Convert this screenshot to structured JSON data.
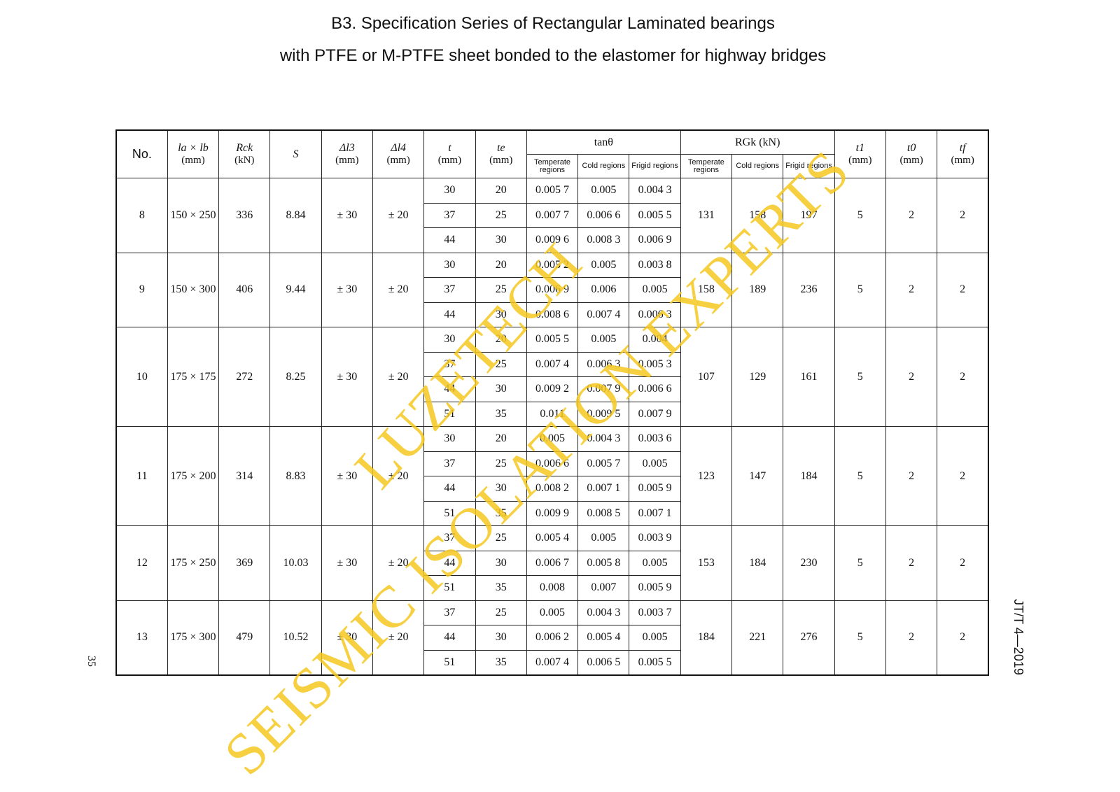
{
  "title_line1": "B3.  Specification Series of Rectangular Laminated bearings",
  "title_line2": "with PTFE or M-PTFE sheet bonded to the elastomer for highway bridges",
  "header": {
    "no": "No.",
    "dims": "la × lb",
    "dims_unit": "(mm)",
    "rck": "Rck",
    "rck_unit": "(kN)",
    "s": "S",
    "dl3": "Δl3",
    "dl3_unit": "(mm)",
    "dl4": "Δl4",
    "dl4_unit": "(mm)",
    "t": "t",
    "t_unit": "(mm)",
    "te": "te",
    "te_unit": "(mm)",
    "tan": "tanθ",
    "rgk": "RGk (kN)",
    "temperate": "Temperate regions",
    "cold": "Cold regions",
    "frigid": "Frigid regions",
    "t1": "t1",
    "t1_unit": "(mm)",
    "t0": "t0",
    "t0_unit": "(mm)",
    "tf": "tf",
    "tf_unit": "(mm)"
  },
  "groups": [
    {
      "no": "8",
      "dims": "150 × 250",
      "rck": "336",
      "s": "8.84",
      "dl3": "± 30",
      "dl4": "± 20",
      "rgk": [
        "131",
        "158",
        "197"
      ],
      "t1": "5",
      "t0": "2",
      "tf": "2",
      "rows": [
        [
          "30",
          "20",
          "0.005 7",
          "0.005",
          "0.004 3"
        ],
        [
          "37",
          "25",
          "0.007 7",
          "0.006 6",
          "0.005 5"
        ],
        [
          "44",
          "30",
          "0.009 6",
          "0.008 3",
          "0.006 9"
        ]
      ]
    },
    {
      "no": "9",
      "dims": "150 × 300",
      "rck": "406",
      "s": "9.44",
      "dl3": "± 30",
      "dl4": "± 20",
      "rgk": [
        "158",
        "189",
        "236"
      ],
      "t1": "5",
      "t0": "2",
      "tf": "2",
      "rows": [
        [
          "30",
          "20",
          "0.005 2",
          "0.005",
          "0.003 8"
        ],
        [
          "37",
          "25",
          "0.006 9",
          "0.006",
          "0.005"
        ],
        [
          "44",
          "30",
          "0.008 6",
          "0.007 4",
          "0.006 3"
        ]
      ]
    },
    {
      "no": "10",
      "dims": "175 × 175",
      "rck": "272",
      "s": "8.25",
      "dl3": "± 30",
      "dl4": "± 20",
      "rgk": [
        "107",
        "129",
        "161"
      ],
      "t1": "5",
      "t0": "2",
      "tf": "2",
      "rows": [
        [
          "30",
          "20",
          "0.005 5",
          "0.005",
          "0.004"
        ],
        [
          "37",
          "25",
          "0.007 4",
          "0.006 3",
          "0.005 3"
        ],
        [
          "44",
          "30",
          "0.009 2",
          "0.007 9",
          "0.006 6"
        ],
        [
          "51",
          "35",
          "0.011",
          "0.009 5",
          "0.007 9"
        ]
      ]
    },
    {
      "no": "11",
      "dims": "175 × 200",
      "rck": "314",
      "s": "8.83",
      "dl3": "± 30",
      "dl4": "± 20",
      "rgk": [
        "123",
        "147",
        "184"
      ],
      "t1": "5",
      "t0": "2",
      "tf": "2",
      "rows": [
        [
          "30",
          "20",
          "0.005",
          "0.004 3",
          "0.003 6"
        ],
        [
          "37",
          "25",
          "0.006 6",
          "0.005 7",
          "0.005"
        ],
        [
          "44",
          "30",
          "0.008 2",
          "0.007 1",
          "0.005 9"
        ],
        [
          "51",
          "35",
          "0.009 9",
          "0.008 5",
          "0.007 1"
        ]
      ]
    },
    {
      "no": "12",
      "dims": "175 × 250",
      "rck": "369",
      "s": "10.03",
      "dl3": "± 30",
      "dl4": "± 20",
      "rgk": [
        "153",
        "184",
        "230"
      ],
      "t1": "5",
      "t0": "2",
      "tf": "2",
      "rows": [
        [
          "37",
          "25",
          "0.005 4",
          "0.005",
          "0.003 9"
        ],
        [
          "44",
          "30",
          "0.006 7",
          "0.005 8",
          "0.005"
        ],
        [
          "51",
          "35",
          "0.008",
          "0.007",
          "0.005 9"
        ]
      ]
    },
    {
      "no": "13",
      "dims": "175 × 300",
      "rck": "479",
      "s": "10.52",
      "dl3": "± 30",
      "dl4": "± 20",
      "rgk": [
        "184",
        "221",
        "276"
      ],
      "t1": "5",
      "t0": "2",
      "tf": "2",
      "rows": [
        [
          "37",
          "25",
          "0.005",
          "0.004 3",
          "0.003 7"
        ],
        [
          "44",
          "30",
          "0.006 2",
          "0.005 4",
          "0.005"
        ],
        [
          "51",
          "35",
          "0.007 4",
          "0.006 5",
          "0.005 5"
        ]
      ]
    }
  ],
  "page_number": "35",
  "standard_code": "JT/T 4—2019",
  "watermark": {
    "line1": "LUZETECH",
    "line2": "SEISMIC ISOLATION EXPERTS",
    "color": "#f5c81e"
  }
}
